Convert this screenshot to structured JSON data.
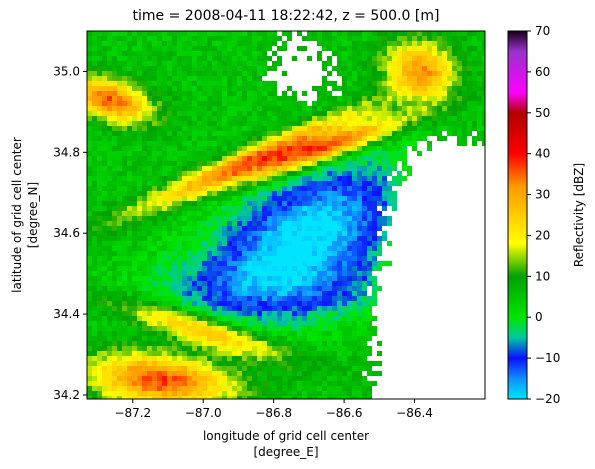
{
  "chart_data": {
    "type": "heatmap",
    "title": "time = 2008-04-11 18:22:42, z = 500.0 [m]",
    "xlabel": "longitude of grid cell center",
    "xlabel_units": "[degree_E]",
    "ylabel": "latitude of grid cell center",
    "ylabel_units": "[degree_N]",
    "xlim": [
      -87.33,
      -86.2
    ],
    "ylim": [
      34.19,
      35.1
    ],
    "xticks": [
      -87.2,
      -87.0,
      -86.8,
      -86.6,
      -86.4
    ],
    "xtick_labels": [
      "−87.2",
      "−87.0",
      "−86.8",
      "−86.6",
      "−86.4"
    ],
    "yticks": [
      34.2,
      34.4,
      34.6,
      34.8,
      35.0
    ],
    "ytick_labels": [
      "34.2",
      "34.4",
      "34.6",
      "34.8",
      "35.0"
    ],
    "colorbar": {
      "label": "Reflectivity [dBZ]",
      "vmin": -20,
      "vmax": 70,
      "ticks": [
        -20,
        -10,
        0,
        10,
        20,
        30,
        40,
        50,
        60,
        70
      ],
      "tick_labels": [
        "−20",
        "−10",
        "0",
        "10",
        "20",
        "30",
        "40",
        "50",
        "60",
        "70"
      ],
      "stops": [
        {
          "value": -20,
          "color": "#00e5ff"
        },
        {
          "value": -15,
          "color": "#1090ff"
        },
        {
          "value": -10,
          "color": "#0a10ff"
        },
        {
          "value": -5,
          "color": "#00c8a0"
        },
        {
          "value": 0,
          "color": "#00e600"
        },
        {
          "value": 10,
          "color": "#00a000"
        },
        {
          "value": 18,
          "color": "#ffff00"
        },
        {
          "value": 25,
          "color": "#ffcc00"
        },
        {
          "value": 32,
          "color": "#ff9900"
        },
        {
          "value": 40,
          "color": "#ff0000"
        },
        {
          "value": 50,
          "color": "#b00000"
        },
        {
          "value": 55,
          "color": "#ff00ff"
        },
        {
          "value": 65,
          "color": "#9933cc"
        },
        {
          "value": 70,
          "color": "#150015"
        }
      ]
    }
  }
}
